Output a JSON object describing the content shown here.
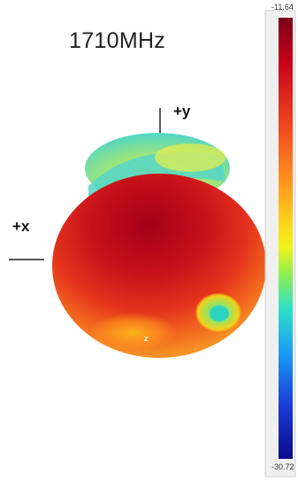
{
  "title": "1710MHz",
  "axes": {
    "y_label": "+y",
    "x_label": "+x",
    "z_label": "z"
  },
  "colorbar": {
    "max": "-11.64",
    "min": "-30.72",
    "colors": [
      "#7a0018",
      "#c8001b",
      "#f04a1f",
      "#ff9a1f",
      "#ffd11a",
      "#f2f21a",
      "#8ff04d",
      "#2ee0c8",
      "#1a9cf5",
      "#1a3cd6",
      "#0a0a8a"
    ]
  }
}
